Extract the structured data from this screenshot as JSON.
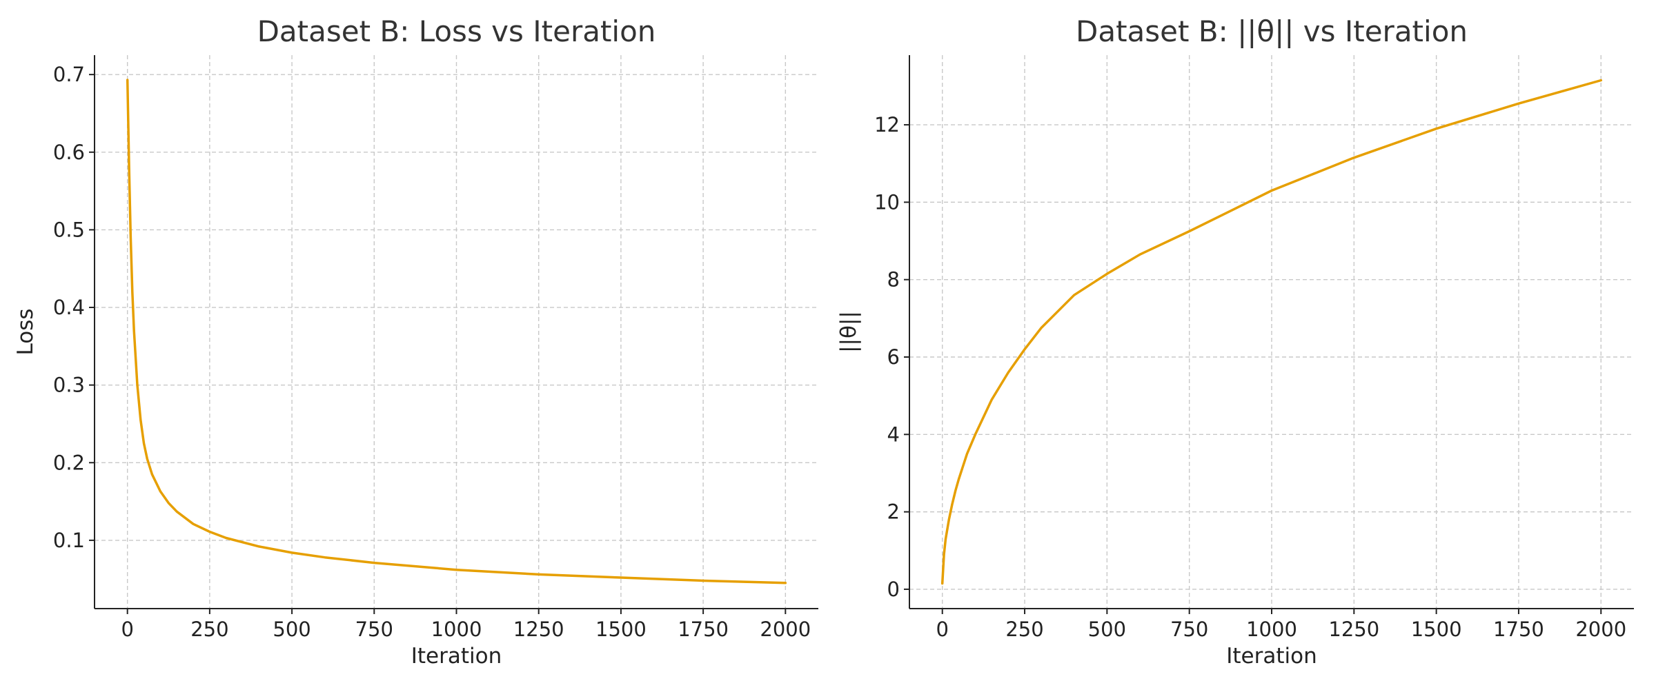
{
  "chart_data": [
    {
      "type": "line",
      "title": "Dataset B: Loss vs Iteration",
      "xlabel": "Iteration",
      "ylabel": "Loss",
      "xlim": [
        -100,
        2100
      ],
      "ylim": [
        0.012,
        0.725
      ],
      "xticks": [
        0,
        250,
        500,
        750,
        1000,
        1250,
        1500,
        1750,
        2000
      ],
      "yticks": [
        0.1,
        0.2,
        0.3,
        0.4,
        0.5,
        0.6,
        0.7
      ],
      "grid": true,
      "color": "#E69F00",
      "series": [
        {
          "x": [
            0,
            5,
            10,
            15,
            20,
            30,
            40,
            50,
            60,
            75,
            100,
            125,
            150,
            200,
            250,
            300,
            400,
            500,
            600,
            750,
            1000,
            1250,
            1500,
            1750,
            2000
          ],
          "y": [
            0.693,
            0.58,
            0.49,
            0.42,
            0.37,
            0.3,
            0.255,
            0.225,
            0.205,
            0.185,
            0.163,
            0.148,
            0.137,
            0.121,
            0.111,
            0.103,
            0.092,
            0.084,
            0.078,
            0.071,
            0.062,
            0.056,
            0.052,
            0.048,
            0.045
          ]
        }
      ]
    },
    {
      "type": "line",
      "title": "Dataset B: ||θ|| vs Iteration",
      "xlabel": "Iteration",
      "ylabel": "||θ||",
      "xlim": [
        -100,
        2100
      ],
      "ylim": [
        -0.5,
        13.8
      ],
      "xticks": [
        0,
        250,
        500,
        750,
        1000,
        1250,
        1500,
        1750,
        2000
      ],
      "yticks": [
        0,
        2,
        4,
        6,
        8,
        10,
        12
      ],
      "grid": true,
      "color": "#E69F00",
      "series": [
        {
          "x": [
            0,
            5,
            10,
            20,
            30,
            40,
            50,
            75,
            100,
            150,
            200,
            250,
            300,
            400,
            500,
            600,
            750,
            1000,
            1250,
            1500,
            1750,
            2000
          ],
          "y": [
            0.15,
            0.9,
            1.3,
            1.8,
            2.2,
            2.55,
            2.85,
            3.5,
            4.0,
            4.9,
            5.6,
            6.2,
            6.75,
            7.6,
            8.15,
            8.65,
            9.25,
            10.3,
            11.15,
            11.9,
            12.55,
            13.15
          ]
        }
      ]
    }
  ]
}
